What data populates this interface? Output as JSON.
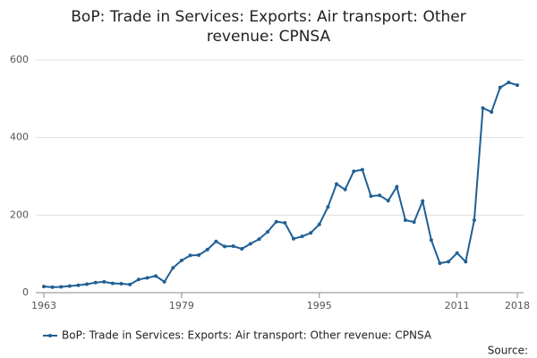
{
  "chart_data": {
    "type": "line",
    "title": "BoP: Trade in Services: Exports: Air transport: Other revenue: CPNSA",
    "x": [
      1963,
      1964,
      1965,
      1966,
      1967,
      1968,
      1969,
      1970,
      1971,
      1972,
      1973,
      1974,
      1975,
      1976,
      1977,
      1978,
      1979,
      1980,
      1981,
      1982,
      1983,
      1984,
      1985,
      1986,
      1987,
      1988,
      1989,
      1990,
      1991,
      1992,
      1993,
      1994,
      1995,
      1996,
      1997,
      1998,
      1999,
      2000,
      2001,
      2002,
      2003,
      2004,
      2005,
      2006,
      2007,
      2008,
      2009,
      2010,
      2011,
      2012,
      2013,
      2014,
      2015,
      2016,
      2017,
      2018
    ],
    "series": [
      {
        "name": "BoP: Trade in Services: Exports: Air transport: Other revenue: CPNSA",
        "color": "#206095",
        "values": [
          16,
          14,
          15,
          17,
          19,
          22,
          26,
          28,
          24,
          23,
          21,
          34,
          38,
          43,
          28,
          64,
          83,
          96,
          97,
          111,
          132,
          119,
          120,
          113,
          126,
          138,
          157,
          183,
          180,
          139,
          145,
          154,
          176,
          221,
          280,
          266,
          313,
          317,
          249,
          251,
          237,
          273,
          187,
          182,
          236,
          136,
          76,
          80,
          102,
          80,
          187,
          476,
          466,
          529,
          542,
          535
        ]
      }
    ],
    "xlim": [
      1963,
      2018
    ],
    "xticks": [
      1963,
      1979,
      1995,
      2011,
      2018
    ],
    "ylim": [
      0,
      600
    ],
    "yticks": [
      0,
      200,
      400,
      600
    ],
    "grid": true,
    "source": "Source:"
  }
}
